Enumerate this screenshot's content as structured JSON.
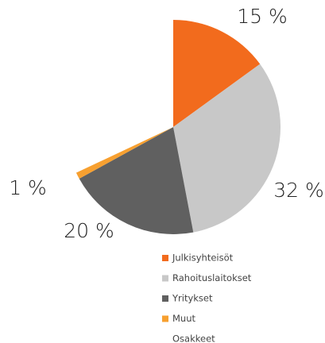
{
  "chart_data": {
    "type": "pie",
    "categories": [
      "Julkisyhteisöt",
      "Rahoituslaitokset",
      "Yritykset",
      "Muut",
      "Osakkeet"
    ],
    "values": [
      15,
      32,
      20,
      1,
      32
    ],
    "value_labels": [
      "15 %",
      "32 %",
      "20 %",
      "1 %",
      null
    ],
    "colors": [
      "#f26b1d",
      "#c8c8c8",
      "#606060",
      "#f7a030",
      "#ffffff"
    ],
    "legend": "bottom"
  }
}
